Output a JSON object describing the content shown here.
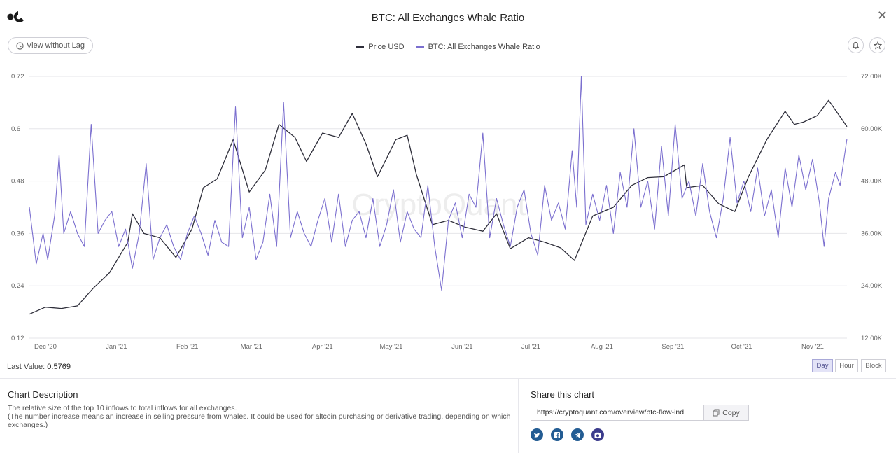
{
  "header": {
    "title": "BTC: All Exchanges Whale Ratio",
    "close_icon": "close-icon",
    "logo": "cryptoquant-logo"
  },
  "toolbar": {
    "view_without_lag_label": "View without Lag",
    "clock_icon": "clock-icon",
    "bell_icon": "bell-icon",
    "star_icon": "star-icon"
  },
  "colors": {
    "price": "#2e2e3a",
    "ratio": "#7b6fcf",
    "accent": "#6b63c9"
  },
  "chart_data": {
    "type": "line",
    "watermark": "CryptoQuant",
    "legend": [
      "Price USD",
      "BTC: All Exchanges Whale Ratio"
    ],
    "x_ticks": [
      "Dec '20",
      "Jan '21",
      "Feb '21",
      "Mar '21",
      "Apr '21",
      "May '21",
      "Jun '21",
      "Jul '21",
      "Aug '21",
      "Sep '21",
      "Oct '21",
      "Nov '21"
    ],
    "x_range": [
      "2020-11-24",
      "2021-11-16"
    ],
    "left_axis": {
      "label": "",
      "range": [
        0.12,
        0.72
      ],
      "ticks": [
        "0.12",
        "0.24",
        "0.36",
        "0.48",
        "0.6",
        "0.72"
      ]
    },
    "right_axis": {
      "label": "",
      "range": [
        12000,
        72000
      ],
      "ticks": [
        "12.00K",
        "24.00K",
        "36.00K",
        "48.00K",
        "60.00K",
        "72.00K"
      ]
    },
    "grid": true,
    "series": [
      {
        "name": "Price USD",
        "axis": "right",
        "color": "#2e2e3a",
        "points": [
          [
            "2020-11-24",
            17500
          ],
          [
            "2020-12-01",
            19100
          ],
          [
            "2020-12-08",
            18800
          ],
          [
            "2020-12-15",
            19400
          ],
          [
            "2020-12-22",
            23500
          ],
          [
            "2020-12-29",
            27000
          ],
          [
            "2021-01-06",
            34000
          ],
          [
            "2021-01-08",
            40500
          ],
          [
            "2021-01-13",
            36000
          ],
          [
            "2021-01-20",
            35000
          ],
          [
            "2021-01-27",
            30500
          ],
          [
            "2021-02-03",
            37000
          ],
          [
            "2021-02-08",
            46500
          ],
          [
            "2021-02-14",
            48500
          ],
          [
            "2021-02-21",
            57500
          ],
          [
            "2021-02-28",
            45500
          ],
          [
            "2021-03-07",
            50500
          ],
          [
            "2021-03-13",
            61000
          ],
          [
            "2021-03-20",
            58000
          ],
          [
            "2021-03-25",
            52500
          ],
          [
            "2021-04-01",
            59000
          ],
          [
            "2021-04-08",
            58000
          ],
          [
            "2021-04-14",
            63500
          ],
          [
            "2021-04-20",
            56500
          ],
          [
            "2021-04-25",
            49000
          ],
          [
            "2021-05-03",
            57500
          ],
          [
            "2021-05-08",
            58500
          ],
          [
            "2021-05-12",
            49500
          ],
          [
            "2021-05-19",
            38000
          ],
          [
            "2021-05-26",
            39000
          ],
          [
            "2021-06-02",
            37500
          ],
          [
            "2021-06-10",
            36500
          ],
          [
            "2021-06-16",
            40500
          ],
          [
            "2021-06-22",
            32500
          ],
          [
            "2021-06-30",
            35000
          ],
          [
            "2021-07-07",
            34000
          ],
          [
            "2021-07-14",
            32700
          ],
          [
            "2021-07-20",
            29800
          ],
          [
            "2021-07-28",
            40000
          ],
          [
            "2021-08-06",
            42000
          ],
          [
            "2021-08-14",
            47000
          ],
          [
            "2021-08-21",
            48800
          ],
          [
            "2021-08-28",
            49000
          ],
          [
            "2021-09-06",
            51700
          ],
          [
            "2021-09-07",
            46500
          ],
          [
            "2021-09-14",
            47000
          ],
          [
            "2021-09-21",
            42800
          ],
          [
            "2021-09-28",
            41000
          ],
          [
            "2021-10-04",
            49000
          ],
          [
            "2021-10-12",
            57500
          ],
          [
            "2021-10-20",
            64000
          ],
          [
            "2021-10-24",
            61000
          ],
          [
            "2021-10-28",
            61500
          ],
          [
            "2021-11-03",
            63000
          ],
          [
            "2021-11-08",
            66500
          ],
          [
            "2021-11-10",
            65000
          ],
          [
            "2021-11-16",
            60500
          ]
        ]
      },
      {
        "name": "BTC: All Exchanges Whale Ratio",
        "axis": "left",
        "color": "#7b6fcf",
        "points": [
          [
            "2020-11-24",
            0.42
          ],
          [
            "2020-11-27",
            0.29
          ],
          [
            "2020-11-30",
            0.36
          ],
          [
            "2020-12-02",
            0.3
          ],
          [
            "2020-12-05",
            0.4
          ],
          [
            "2020-12-07",
            0.54
          ],
          [
            "2020-12-09",
            0.36
          ],
          [
            "2020-12-12",
            0.41
          ],
          [
            "2020-12-15",
            0.36
          ],
          [
            "2020-12-18",
            0.33
          ],
          [
            "2020-12-21",
            0.61
          ],
          [
            "2020-12-24",
            0.36
          ],
          [
            "2020-12-27",
            0.39
          ],
          [
            "2020-12-30",
            0.41
          ],
          [
            "2021-01-02",
            0.33
          ],
          [
            "2021-01-05",
            0.37
          ],
          [
            "2021-01-08",
            0.28
          ],
          [
            "2021-01-11",
            0.36
          ],
          [
            "2021-01-14",
            0.52
          ],
          [
            "2021-01-17",
            0.3
          ],
          [
            "2021-01-20",
            0.35
          ],
          [
            "2021-01-23",
            0.38
          ],
          [
            "2021-01-26",
            0.33
          ],
          [
            "2021-01-29",
            0.3
          ],
          [
            "2021-02-01",
            0.36
          ],
          [
            "2021-02-04",
            0.4
          ],
          [
            "2021-02-07",
            0.36
          ],
          [
            "2021-02-10",
            0.31
          ],
          [
            "2021-02-13",
            0.39
          ],
          [
            "2021-02-16",
            0.34
          ],
          [
            "2021-02-19",
            0.33
          ],
          [
            "2021-02-22",
            0.65
          ],
          [
            "2021-02-25",
            0.35
          ],
          [
            "2021-02-28",
            0.42
          ],
          [
            "2021-03-03",
            0.3
          ],
          [
            "2021-03-06",
            0.34
          ],
          [
            "2021-03-09",
            0.45
          ],
          [
            "2021-03-12",
            0.33
          ],
          [
            "2021-03-15",
            0.66
          ],
          [
            "2021-03-18",
            0.35
          ],
          [
            "2021-03-21",
            0.41
          ],
          [
            "2021-03-24",
            0.36
          ],
          [
            "2021-03-27",
            0.33
          ],
          [
            "2021-03-30",
            0.39
          ],
          [
            "2021-04-02",
            0.44
          ],
          [
            "2021-04-05",
            0.34
          ],
          [
            "2021-04-08",
            0.45
          ],
          [
            "2021-04-11",
            0.33
          ],
          [
            "2021-04-14",
            0.39
          ],
          [
            "2021-04-17",
            0.41
          ],
          [
            "2021-04-20",
            0.35
          ],
          [
            "2021-04-23",
            0.44
          ],
          [
            "2021-04-26",
            0.33
          ],
          [
            "2021-04-29",
            0.38
          ],
          [
            "2021-05-02",
            0.46
          ],
          [
            "2021-05-05",
            0.34
          ],
          [
            "2021-05-08",
            0.41
          ],
          [
            "2021-05-11",
            0.37
          ],
          [
            "2021-05-14",
            0.35
          ],
          [
            "2021-05-17",
            0.47
          ],
          [
            "2021-05-20",
            0.33
          ],
          [
            "2021-05-23",
            0.23
          ],
          [
            "2021-05-26",
            0.39
          ],
          [
            "2021-05-29",
            0.43
          ],
          [
            "2021-06-01",
            0.35
          ],
          [
            "2021-06-04",
            0.45
          ],
          [
            "2021-06-07",
            0.42
          ],
          [
            "2021-06-10",
            0.59
          ],
          [
            "2021-06-13",
            0.35
          ],
          [
            "2021-06-16",
            0.44
          ],
          [
            "2021-06-19",
            0.38
          ],
          [
            "2021-06-22",
            0.33
          ],
          [
            "2021-06-25",
            0.42
          ],
          [
            "2021-06-28",
            0.46
          ],
          [
            "2021-07-01",
            0.36
          ],
          [
            "2021-07-04",
            0.31
          ],
          [
            "2021-07-07",
            0.47
          ],
          [
            "2021-07-10",
            0.39
          ],
          [
            "2021-07-13",
            0.43
          ],
          [
            "2021-07-16",
            0.37
          ],
          [
            "2021-07-19",
            0.55
          ],
          [
            "2021-07-21",
            0.42
          ],
          [
            "2021-07-23",
            0.72
          ],
          [
            "2021-07-25",
            0.38
          ],
          [
            "2021-07-28",
            0.45
          ],
          [
            "2021-07-31",
            0.39
          ],
          [
            "2021-08-03",
            0.47
          ],
          [
            "2021-08-06",
            0.36
          ],
          [
            "2021-08-09",
            0.5
          ],
          [
            "2021-08-12",
            0.42
          ],
          [
            "2021-08-15",
            0.6
          ],
          [
            "2021-08-18",
            0.42
          ],
          [
            "2021-08-21",
            0.48
          ],
          [
            "2021-08-24",
            0.37
          ],
          [
            "2021-08-27",
            0.56
          ],
          [
            "2021-08-30",
            0.4
          ],
          [
            "2021-09-02",
            0.61
          ],
          [
            "2021-09-05",
            0.44
          ],
          [
            "2021-09-08",
            0.48
          ],
          [
            "2021-09-11",
            0.4
          ],
          [
            "2021-09-14",
            0.52
          ],
          [
            "2021-09-17",
            0.41
          ],
          [
            "2021-09-20",
            0.35
          ],
          [
            "2021-09-23",
            0.44
          ],
          [
            "2021-09-26",
            0.58
          ],
          [
            "2021-09-29",
            0.43
          ],
          [
            "2021-10-02",
            0.48
          ],
          [
            "2021-10-05",
            0.41
          ],
          [
            "2021-10-08",
            0.51
          ],
          [
            "2021-10-11",
            0.4
          ],
          [
            "2021-10-14",
            0.46
          ],
          [
            "2021-10-17",
            0.35
          ],
          [
            "2021-10-20",
            0.51
          ],
          [
            "2021-10-23",
            0.42
          ],
          [
            "2021-10-26",
            0.54
          ],
          [
            "2021-10-29",
            0.46
          ],
          [
            "2021-11-01",
            0.53
          ],
          [
            "2021-11-04",
            0.43
          ],
          [
            "2021-11-06",
            0.33
          ],
          [
            "2021-11-08",
            0.44
          ],
          [
            "2021-11-11",
            0.5
          ],
          [
            "2021-11-13",
            0.47
          ],
          [
            "2021-11-16",
            0.5769
          ]
        ]
      }
    ]
  },
  "footer": {
    "last_value_label": "Last Value:",
    "last_value": "0.5769",
    "granularity": [
      {
        "label": "Day",
        "active": true
      },
      {
        "label": "Hour",
        "active": false
      },
      {
        "label": "Block",
        "active": false
      }
    ]
  },
  "description": {
    "title": "Chart Description",
    "line1": "The relative size of the top 10 inflows to total inflows for all exchanges.",
    "line2": "(The number increase means an increase in selling pressure from whales. It could be used for altcoin purchasing or derivative trading, depending on which exchanges.)"
  },
  "share": {
    "title": "Share this chart",
    "url": "https://cryptoquant.com/overview/btc-flow-ind",
    "copy_label": "Copy",
    "copy_icon": "copy-icon",
    "socials": [
      "twitter-icon",
      "facebook-icon",
      "telegram-icon",
      "camera-icon"
    ]
  }
}
